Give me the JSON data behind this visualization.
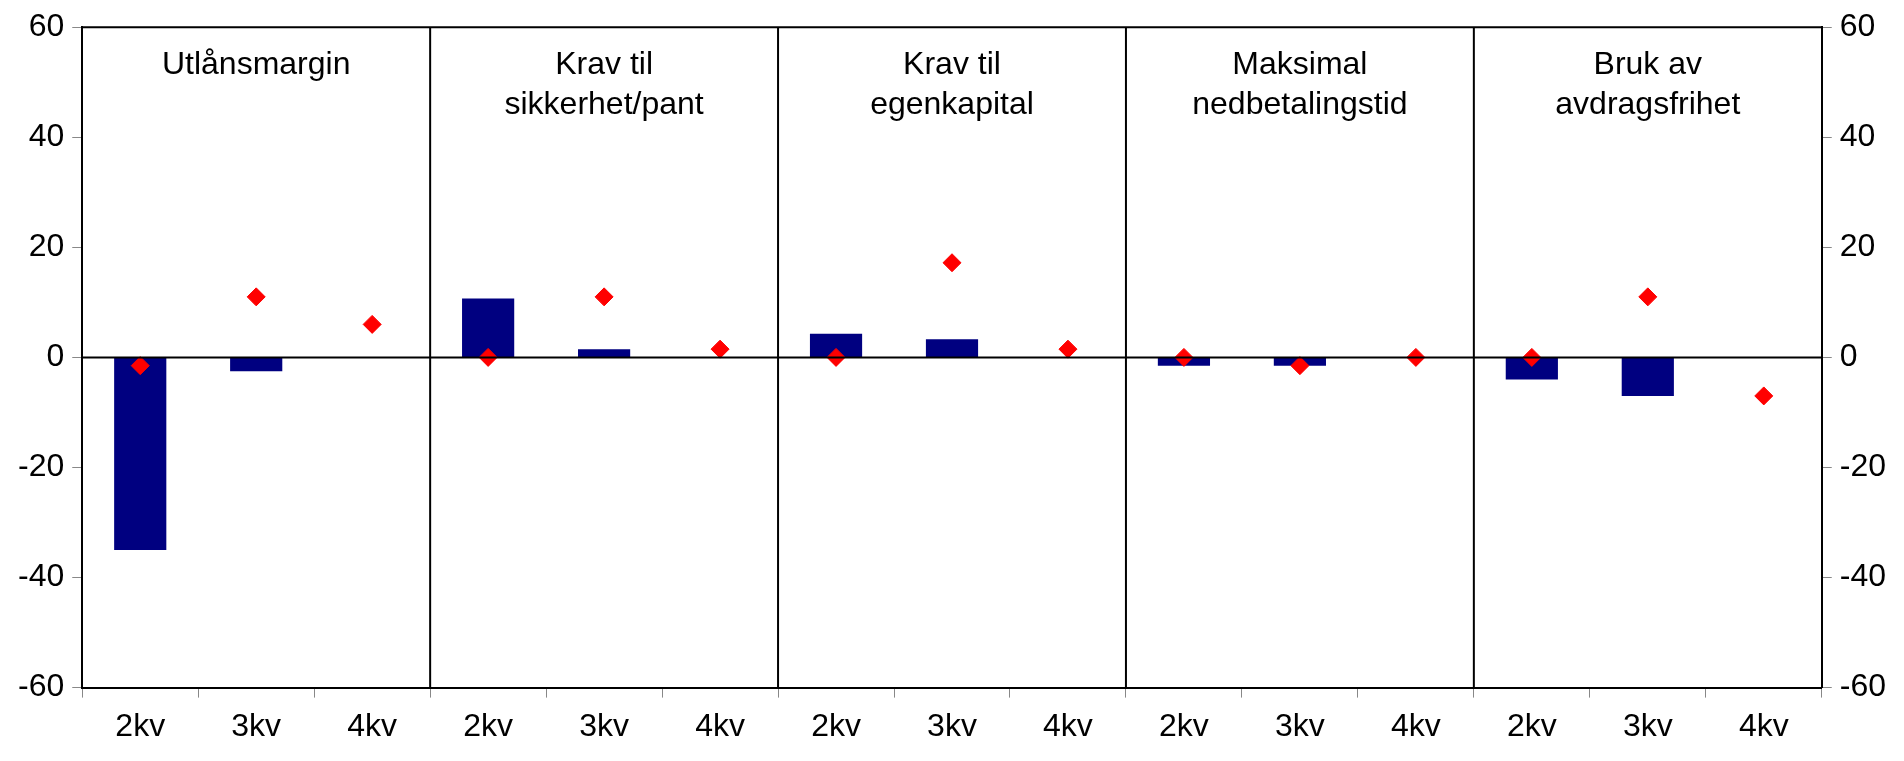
{
  "chart_data": {
    "type": "bar",
    "categories": [
      "2kv",
      "3kv",
      "4kv",
      "2kv",
      "3kv",
      "4kv",
      "2kv",
      "3kv",
      "4kv",
      "2kv",
      "3kv",
      "4kv",
      "2kv",
      "3kv",
      "4kv"
    ],
    "series": [
      {
        "color": "#000080",
        "values": [
          -35,
          -2.5,
          null,
          10.7,
          1.5,
          null,
          4.3,
          3.3,
          null,
          -1.5,
          -1.5,
          null,
          -4,
          -7,
          null
        ]
      },
      {
        "type": "scatter",
        "color": "#ff0000",
        "marker": "diamond",
        "values": [
          -1.5,
          11,
          6,
          0,
          11,
          1.5,
          0,
          17.2,
          1.5,
          0,
          -1.5,
          0,
          0,
          11,
          -7
        ]
      }
    ],
    "annotations": [
      "Utlånsmargin",
      "Krav til\nsikkerhet/pant",
      "Krav til\negenkapital",
      "Maksimal\nnedbetalingstid",
      "Bruk av\navdragsfrihet"
    ],
    "ylim": [
      -60,
      60
    ],
    "yticks": [
      -60,
      -40,
      -20,
      0,
      20,
      40,
      60
    ],
    "y2lim": [
      -60,
      60
    ],
    "y2ticks": [
      -60,
      -40,
      -20,
      0,
      20,
      40,
      60
    ],
    "ref_lines": [
      {
        "axis": "y",
        "value": 0
      }
    ],
    "grid": false,
    "legend": false
  }
}
